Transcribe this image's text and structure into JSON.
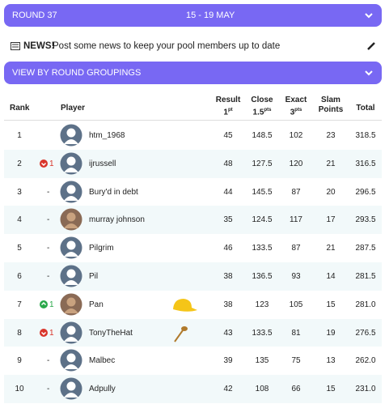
{
  "header": {
    "round": "ROUND 37",
    "dates": "15 - 19 MAY"
  },
  "news": {
    "label": "NEWS!",
    "text": "Post some news to keep your pool members up to date"
  },
  "groupings": "VIEW BY ROUND GROUPINGS",
  "table": {
    "columns": {
      "rank": "Rank",
      "player": "Player",
      "result": {
        "text": "Result",
        "base": "1",
        "sup": "pt"
      },
      "close": {
        "text": "Close",
        "base": "1.5",
        "sup": "pts"
      },
      "exact": {
        "text": "Exact",
        "base": "3",
        "sup": "pts"
      },
      "slam": {
        "text": "Slam",
        "base": "Points"
      },
      "total": "Total"
    },
    "rows": [
      {
        "rank": "1",
        "movement": "",
        "player": "htm_1968",
        "result": "45",
        "close": "148.5",
        "exact": "102",
        "slam": "23",
        "total": "318.5"
      },
      {
        "rank": "2",
        "movement": "1",
        "direction": "down",
        "player": "ijrussell",
        "result": "48",
        "close": "127.5",
        "exact": "120",
        "slam": "21",
        "total": "316.5"
      },
      {
        "rank": "3",
        "movement": "-",
        "player": "Bury'd in debt",
        "result": "44",
        "close": "145.5",
        "exact": "87",
        "slam": "20",
        "total": "296.5"
      },
      {
        "rank": "4",
        "movement": "-",
        "player": "murray johnson",
        "avatar": "photo",
        "result": "35",
        "close": "124.5",
        "exact": "117",
        "slam": "17",
        "total": "293.5"
      },
      {
        "rank": "5",
        "movement": "-",
        "player": "Pilgrim",
        "result": "46",
        "close": "133.5",
        "exact": "87",
        "slam": "21",
        "total": "287.5"
      },
      {
        "rank": "6",
        "movement": "-",
        "player": "Pil",
        "result": "38",
        "close": "136.5",
        "exact": "93",
        "slam": "14",
        "total": "281.5"
      },
      {
        "rank": "7",
        "movement": "1",
        "direction": "up",
        "player": "Pan",
        "avatar": "photo",
        "badge": "cap",
        "result": "38",
        "close": "123",
        "exact": "105",
        "slam": "15",
        "total": "281.0"
      },
      {
        "rank": "8",
        "movement": "1",
        "direction": "down",
        "player": "TonyTheHat",
        "badge": "spoon",
        "result": "43",
        "close": "133.5",
        "exact": "81",
        "slam": "19",
        "total": "276.5"
      },
      {
        "rank": "9",
        "movement": "-",
        "player": "Malbec",
        "result": "39",
        "close": "135",
        "exact": "75",
        "slam": "13",
        "total": "262.0"
      },
      {
        "rank": "10",
        "movement": "-",
        "player": "Adpully",
        "result": "42",
        "close": "108",
        "exact": "66",
        "slam": "15",
        "total": "231.0"
      }
    ]
  }
}
